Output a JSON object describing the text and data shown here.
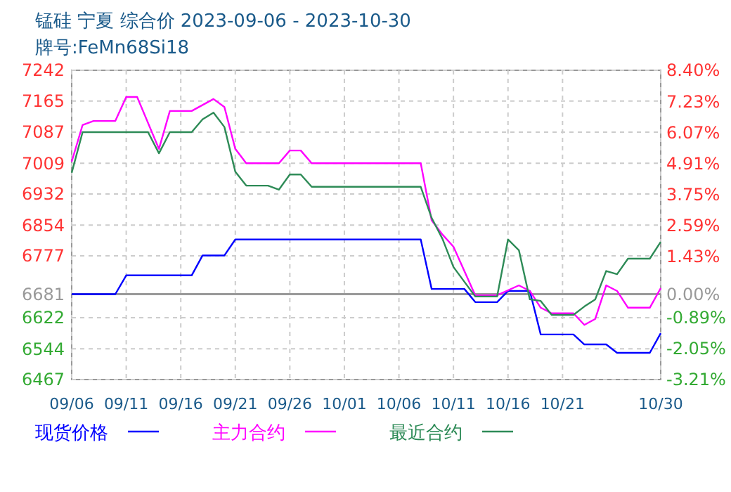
{
  "chart_data": {
    "type": "line",
    "title": "锰硅  宁夏  综合价  2023-09-06 - 2023-10-30",
    "subtitle": "牌号:FeMn68Si18",
    "xlim": [
      "2023-09-06",
      "2023-10-30"
    ],
    "xticks": [
      {
        "value": "2023-09-06",
        "label": "09/06"
      },
      {
        "value": "2023-09-11",
        "label": "09/11"
      },
      {
        "value": "2023-09-16",
        "label": "09/16"
      },
      {
        "value": "2023-09-21",
        "label": "09/21"
      },
      {
        "value": "2023-09-26",
        "label": "09/26"
      },
      {
        "value": "2023-10-01",
        "label": "10/01"
      },
      {
        "value": "2023-10-06",
        "label": "10/06"
      },
      {
        "value": "2023-10-11",
        "label": "10/11"
      },
      {
        "value": "2023-10-16",
        "label": "10/16"
      },
      {
        "value": "2023-10-21",
        "label": "10/21"
      },
      {
        "value": "2023-10-30",
        "label": "10/30"
      }
    ],
    "ylim": [
      6467,
      7242
    ],
    "yticks": [
      6467,
      6544,
      6622,
      6681,
      6777,
      6854,
      6932,
      7009,
      7087,
      7165,
      7242
    ],
    "y2lim": [
      -3.21,
      8.4
    ],
    "y2ticks": [
      {
        "value": -3.21,
        "label": "-3.21%"
      },
      {
        "value": -2.05,
        "label": "-2.05%"
      },
      {
        "value": -0.89,
        "label": "-0.89%"
      },
      {
        "value": 0,
        "label": "0.00%"
      },
      {
        "value": 1.43,
        "label": "1.43%"
      },
      {
        "value": 2.59,
        "label": "2.59%"
      },
      {
        "value": 3.75,
        "label": "3.75%"
      },
      {
        "value": 4.91,
        "label": "4.91%"
      },
      {
        "value": 6.07,
        "label": "6.07%"
      },
      {
        "value": 7.23,
        "label": "7.23%"
      },
      {
        "value": 8.4,
        "label": "8.40%"
      }
    ],
    "ref_lines": [
      {
        "axis": "y",
        "value": 6681,
        "color": "#999999",
        "line_style": "solid"
      }
    ],
    "grid": true,
    "legend": "bottom",
    "marker": "none",
    "line_style": "solid",
    "series": [
      {
        "name": "现货价格",
        "color": "#0000ff",
        "x": [
          "2023-09-06",
          "2023-09-10",
          "2023-09-11",
          "2023-09-17",
          "2023-09-18",
          "2023-09-20",
          "2023-09-21",
          "2023-10-08",
          "2023-10-09",
          "2023-10-12",
          "2023-10-13",
          "2023-10-15",
          "2023-10-16",
          "2023-10-18",
          "2023-10-19",
          "2023-10-22",
          "2023-10-23",
          "2023-10-25",
          "2023-10-26",
          "2023-10-29",
          "2023-10-30"
        ],
        "values": [
          6681,
          6681,
          6728,
          6728,
          6778,
          6778,
          6818,
          6818,
          6694,
          6694,
          6661,
          6661,
          6689,
          6689,
          6580,
          6580,
          6555,
          6555,
          6534,
          6534,
          6583
        ]
      },
      {
        "name": "主力合约",
        "color": "#ff00ff",
        "x": [
          "2023-09-06",
          "2023-09-07",
          "2023-09-08",
          "2023-09-10",
          "2023-09-11",
          "2023-09-12",
          "2023-09-14",
          "2023-09-15",
          "2023-09-17",
          "2023-09-19",
          "2023-09-20",
          "2023-09-21",
          "2023-09-22",
          "2023-09-25",
          "2023-09-26",
          "2023-09-27",
          "2023-09-28",
          "2023-10-08",
          "2023-10-09",
          "2023-10-10",
          "2023-10-11",
          "2023-10-13",
          "2023-10-15",
          "2023-10-17",
          "2023-10-18",
          "2023-10-19",
          "2023-10-20",
          "2023-10-22",
          "2023-10-23",
          "2023-10-24",
          "2023-10-25",
          "2023-10-26",
          "2023-10-27",
          "2023-10-29",
          "2023-10-30"
        ],
        "values": [
          7013,
          7105,
          7115,
          7115,
          7175,
          7175,
          7045,
          7140,
          7140,
          7170,
          7150,
          7045,
          7009,
          7009,
          7041,
          7041,
          7009,
          7009,
          6866,
          6830,
          6800,
          6678,
          6678,
          6703,
          6689,
          6647,
          6633,
          6633,
          6604,
          6619,
          6703,
          6689,
          6647,
          6647,
          6696
        ]
      },
      {
        "name": "最近合约",
        "color": "#2e8b57",
        "x": [
          "2023-09-06",
          "2023-09-07",
          "2023-09-13",
          "2023-09-14",
          "2023-09-15",
          "2023-09-17",
          "2023-09-18",
          "2023-09-19",
          "2023-09-20",
          "2023-09-21",
          "2023-09-22",
          "2023-09-24",
          "2023-09-25",
          "2023-09-26",
          "2023-09-27",
          "2023-09-28",
          "2023-10-08",
          "2023-10-09",
          "2023-10-10",
          "2023-10-11",
          "2023-10-13",
          "2023-10-15",
          "2023-10-16",
          "2023-10-17",
          "2023-10-18",
          "2023-10-19",
          "2023-10-20",
          "2023-10-22",
          "2023-10-23",
          "2023-10-24",
          "2023-10-25",
          "2023-10-26",
          "2023-10-27",
          "2023-10-29",
          "2023-10-30"
        ],
        "values": [
          6985,
          7087,
          7087,
          7034,
          7087,
          7087,
          7119,
          7136,
          7100,
          6988,
          6953,
          6953,
          6943,
          6981,
          6981,
          6950,
          6950,
          6872,
          6819,
          6749,
          6675,
          6675,
          6818,
          6791,
          6668,
          6664,
          6629,
          6629,
          6650,
          6668,
          6739,
          6731,
          6770,
          6770,
          6812
        ]
      }
    ]
  }
}
